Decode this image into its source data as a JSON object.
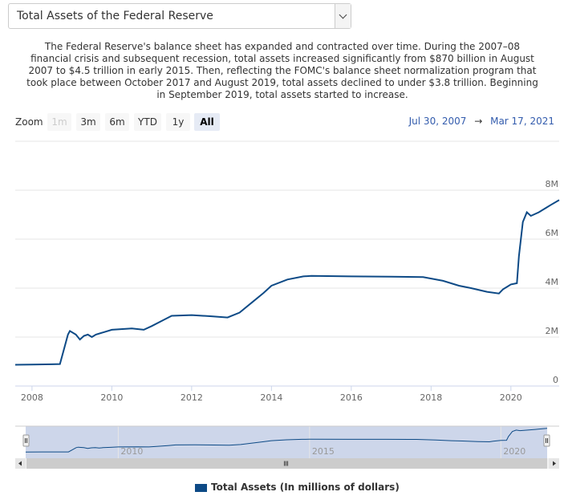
{
  "header": {
    "select_label": "Total Assets of the Federal Reserve",
    "description": "The Federal Reserve's balance sheet has expanded and contracted over time. During the 2007–08 financial crisis and subsequent recession, total assets increased significantly from $870 billion in August 2007 to $4.5 trillion in early 2015. Then, reflecting the FOMC's balance sheet normalization program that took place between October 2017 and August 2019, total assets declined to under $3.8 trillion. Beginning in September 2019, total assets started to increase."
  },
  "zoom": {
    "label": "Zoom",
    "buttons": [
      "1m",
      "3m",
      "6m",
      "YTD",
      "1y",
      "All"
    ],
    "disabled": "1m",
    "active": "All"
  },
  "range": {
    "from": "Jul 30, 2007",
    "arrow": "→",
    "to": "Mar 17, 2021"
  },
  "colors": {
    "series": "#0d4a86",
    "navigator_fill": "#cdd6ea",
    "grid": "#e6e6e6"
  },
  "chart_data": {
    "type": "line",
    "title": "",
    "xlabel": "",
    "ylabel": "",
    "xlim": [
      2007.58,
      2021.21
    ],
    "ylim": [
      0,
      8000000
    ],
    "x_ticks": [
      "2008",
      "2010",
      "2012",
      "2014",
      "2016",
      "2018",
      "2020"
    ],
    "y_ticks": [
      "0",
      "2M",
      "4M",
      "6M",
      "8M"
    ],
    "navigator_ticks": [
      "2010",
      "2015",
      "2020"
    ],
    "legend": {
      "position": "bottom-center"
    },
    "grid": true,
    "series": [
      {
        "name": "Total Assets (In millions of dollars)",
        "x": [
          2007.58,
          2008.0,
          2008.5,
          2008.7,
          2008.8,
          2008.9,
          2008.95,
          2009.1,
          2009.2,
          2009.3,
          2009.4,
          2009.5,
          2009.6,
          2009.8,
          2010.0,
          2010.5,
          2010.8,
          2011.0,
          2011.3,
          2011.5,
          2012.0,
          2012.5,
          2012.9,
          2013.2,
          2013.5,
          2013.8,
          2014.0,
          2014.4,
          2014.8,
          2015.0,
          2016.0,
          2017.0,
          2017.8,
          2018.3,
          2018.7,
          2019.0,
          2019.4,
          2019.7,
          2019.8,
          2020.0,
          2020.15,
          2020.2,
          2020.3,
          2020.4,
          2020.5,
          2020.7,
          2020.9,
          2021.0,
          2021.21
        ],
        "y": [
          870000,
          880000,
          890000,
          900000,
          1500000,
          2100000,
          2250000,
          2100000,
          1900000,
          2050000,
          2100000,
          2000000,
          2100000,
          2200000,
          2300000,
          2350000,
          2300000,
          2450000,
          2700000,
          2870000,
          2900000,
          2850000,
          2800000,
          3000000,
          3400000,
          3800000,
          4100000,
          4350000,
          4480000,
          4500000,
          4480000,
          4470000,
          4450000,
          4300000,
          4100000,
          4000000,
          3850000,
          3780000,
          3950000,
          4150000,
          4200000,
          5300000,
          6700000,
          7100000,
          6950000,
          7100000,
          7300000,
          7400000,
          7600000
        ]
      }
    ]
  }
}
